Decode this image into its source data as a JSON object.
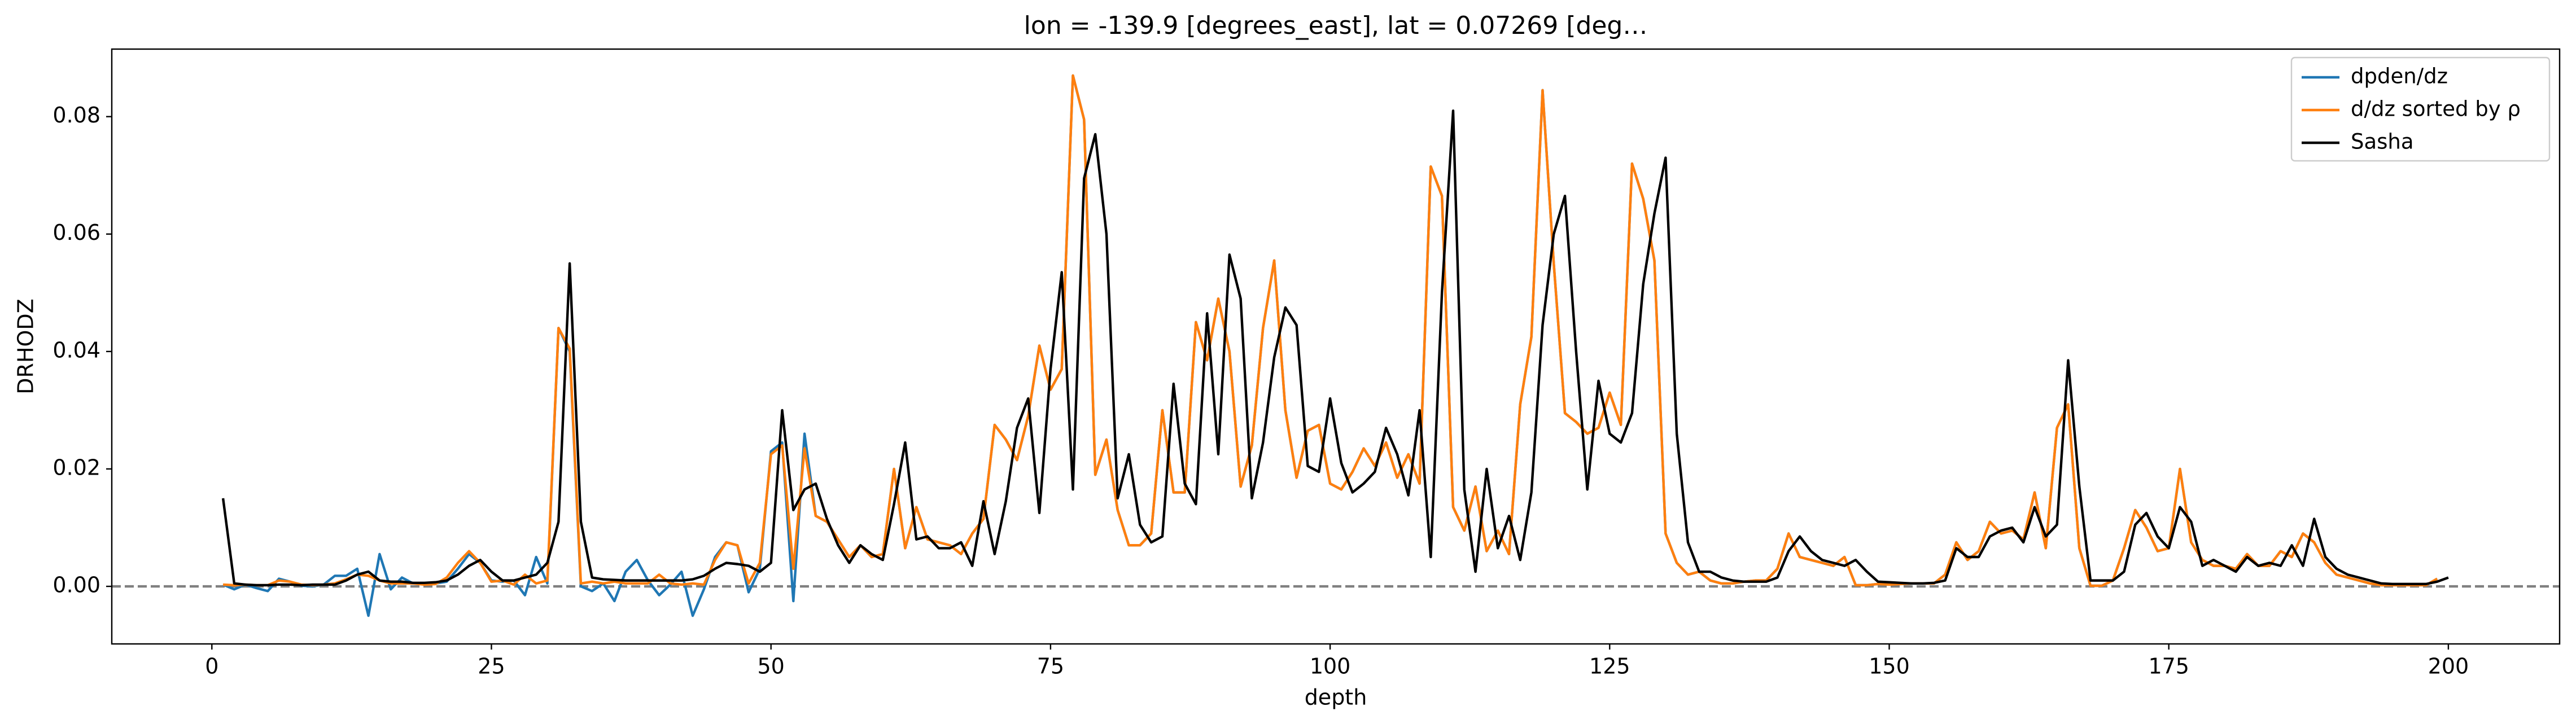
{
  "chart_data": {
    "type": "line",
    "title": "lon = -139.9 [degrees_east], lat = 0.07269 [deg…",
    "x_label": "depth",
    "y_label": "DRHODZ",
    "xlim": [
      -8.95,
      209.95
    ],
    "ylim": [
      -0.0098,
      0.0915
    ],
    "xticks": [
      0,
      25,
      50,
      75,
      100,
      125,
      150,
      175,
      200
    ],
    "yticks": [
      {
        "value": 0,
        "label": "0.00"
      },
      0.02,
      0.04,
      0.06,
      0.08
    ],
    "grid": false,
    "legend_loc": "upper right",
    "hline": {
      "value": 0,
      "color": "#808080",
      "style": "dashed"
    },
    "x": [
      1,
      2,
      3,
      4,
      5,
      6,
      7,
      8,
      9,
      10,
      11,
      12,
      13,
      14,
      15,
      16,
      17,
      18,
      19,
      20,
      21,
      22,
      23,
      24,
      25,
      26,
      27,
      28,
      29,
      30,
      31,
      32,
      33,
      34,
      35,
      36,
      37,
      38,
      39,
      40,
      41,
      42,
      43,
      44,
      45,
      46,
      47,
      48,
      49,
      50,
      51,
      52,
      53,
      54,
      55,
      56,
      57,
      58,
      59,
      60,
      61,
      62,
      63,
      64,
      65,
      66,
      67,
      68,
      69,
      70,
      71,
      72,
      73,
      74,
      75,
      76,
      77,
      78,
      79,
      80,
      81,
      82,
      83,
      84,
      85,
      86,
      87,
      88,
      89,
      90,
      91,
      92,
      93,
      94,
      95,
      96,
      97,
      98,
      99,
      100,
      101,
      102,
      103,
      104,
      105,
      106,
      107,
      108,
      109,
      110,
      111,
      112,
      113,
      114,
      115,
      116,
      117,
      118,
      119,
      120,
      121,
      122,
      123,
      124,
      125,
      126,
      127,
      128,
      129,
      130,
      131,
      132,
      133,
      134,
      135,
      136,
      137,
      138,
      139,
      140,
      141,
      142,
      143,
      144,
      145,
      146,
      147,
      148,
      149,
      150,
      151,
      152,
      153,
      154,
      155,
      156,
      157,
      158,
      159,
      160,
      161,
      162,
      163,
      164,
      165,
      166,
      167,
      168,
      169,
      170,
      171,
      172,
      173,
      174,
      175,
      176,
      177,
      178,
      179,
      180,
      181,
      182,
      183,
      184,
      185,
      186,
      187,
      188,
      189,
      190,
      191,
      192,
      193,
      194,
      195,
      196,
      197,
      198,
      199,
      200
    ],
    "series": [
      {
        "name": "dpden/dz",
        "color": "#1f77b4",
        "values": [
          0.0003,
          -0.0005,
          0.0003,
          -0.0003,
          -0.0008,
          0.0013,
          0.0008,
          0.0001,
          0.0,
          0.0003,
          0.0018,
          0.0018,
          0.003,
          -0.005,
          0.0055,
          -0.0005,
          0.0015,
          0.0005,
          0.0005,
          0.0005,
          0.0008,
          0.003,
          0.0055,
          0.004,
          0.001,
          0.0008,
          0.001,
          -0.0015,
          0.005,
          0.0005,
          0.044,
          0.04,
          0.0,
          -0.0008,
          0.0005,
          -0.0025,
          0.0025,
          0.0045,
          0.001,
          -0.0015,
          0.0003,
          0.0025,
          -0.005,
          -0.0005,
          0.005,
          0.0075,
          0.007,
          -0.001,
          0.003,
          0.023,
          0.0245,
          -0.0025,
          0.026,
          0.012,
          0.011,
          0.008,
          0.005,
          0.007,
          0.005,
          0.0055,
          0.02,
          0.0065,
          0.0135,
          0.008,
          0.0075,
          0.007,
          0.0055,
          0.009,
          0.0115,
          0.0275,
          0.025,
          0.0215,
          0.029,
          0.041,
          0.0335,
          0.037,
          0.087,
          0.0795,
          0.019,
          0.025,
          0.013,
          0.007,
          0.007,
          0.009,
          0.03,
          0.016,
          0.016,
          0.045,
          0.0385,
          0.049,
          0.04,
          0.017,
          0.024,
          0.044,
          0.0555,
          0.03,
          0.0185,
          0.0265,
          0.0275,
          0.0175,
          0.0165,
          0.0195,
          0.0235,
          0.0205,
          0.0245,
          0.0185,
          0.0225,
          0.0175,
          0.0715,
          0.0665,
          0.0135,
          0.0095,
          0.017,
          0.006,
          0.0095,
          0.0055,
          0.031,
          0.0425,
          0.0845,
          0.055,
          0.0295,
          0.028,
          0.026,
          0.027,
          0.033,
          0.0275,
          0.072,
          0.066,
          0.0555,
          0.009,
          0.004,
          0.002,
          0.0025,
          0.001,
          0.0005,
          0.0005,
          0.0008,
          0.001,
          0.001,
          0.003,
          0.009,
          0.005,
          0.0045,
          0.004,
          0.0035,
          0.005,
          0.0002,
          0.0002,
          0.0004,
          0.0003,
          0.0004,
          0.0005,
          0.0005,
          0.0005,
          0.002,
          0.0075,
          0.0045,
          0.006,
          0.011,
          0.009,
          0.0095,
          0.008,
          0.016,
          0.0065,
          0.027,
          0.031,
          0.0065,
          0.0001,
          0.0001,
          0.001,
          0.0065,
          0.013,
          0.01,
          0.006,
          0.0065,
          0.02,
          0.0075,
          0.0045,
          0.0035,
          0.0035,
          0.003,
          0.0055,
          0.0035,
          0.0035,
          0.006,
          0.005,
          0.009,
          0.0075,
          0.004,
          0.002,
          0.0015,
          0.001,
          0.0005,
          0.0002,
          0.0002,
          0.0002,
          0.0002,
          0.0002,
          0.0013,
          null
        ]
      },
      {
        "name": "d/dz sorted by ρ",
        "color": "#ff7f0e",
        "values": [
          0.0003,
          0.0002,
          0.0003,
          0.0002,
          0.0002,
          0.001,
          0.0008,
          0.0003,
          0.0002,
          0.0003,
          0.0005,
          0.0012,
          0.002,
          0.0018,
          0.001,
          0.0005,
          0.0005,
          0.0005,
          0.0003,
          0.0004,
          0.0015,
          0.004,
          0.006,
          0.004,
          0.0008,
          0.001,
          0.0003,
          0.002,
          0.0005,
          0.001,
          0.044,
          0.0405,
          0.0005,
          0.0008,
          0.0005,
          0.0008,
          0.0005,
          0.0005,
          0.0005,
          0.002,
          0.0005,
          0.0003,
          0.0005,
          0.0003,
          0.0045,
          0.0075,
          0.007,
          0.0005,
          0.004,
          0.0225,
          0.024,
          0.003,
          0.0235,
          0.012,
          0.011,
          0.008,
          0.005,
          0.007,
          0.005,
          0.0055,
          0.02,
          0.0065,
          0.0135,
          0.008,
          0.0075,
          0.007,
          0.0055,
          0.009,
          0.0115,
          0.0275,
          0.025,
          0.0215,
          0.029,
          0.041,
          0.0335,
          0.037,
          0.087,
          0.0795,
          0.019,
          0.025,
          0.013,
          0.007,
          0.007,
          0.009,
          0.03,
          0.016,
          0.016,
          0.045,
          0.0385,
          0.049,
          0.04,
          0.017,
          0.024,
          0.044,
          0.0555,
          0.03,
          0.0185,
          0.0265,
          0.0275,
          0.0175,
          0.0165,
          0.0195,
          0.0235,
          0.0205,
          0.0245,
          0.0185,
          0.0225,
          0.0175,
          0.0715,
          0.0665,
          0.0135,
          0.0095,
          0.017,
          0.006,
          0.0095,
          0.0055,
          0.031,
          0.0425,
          0.0845,
          0.055,
          0.0295,
          0.028,
          0.026,
          0.027,
          0.033,
          0.0275,
          0.072,
          0.066,
          0.0555,
          0.009,
          0.004,
          0.002,
          0.0025,
          0.001,
          0.0005,
          0.0005,
          0.0008,
          0.001,
          0.001,
          0.003,
          0.009,
          0.005,
          0.0045,
          0.004,
          0.0035,
          0.005,
          0.0002,
          0.0002,
          0.0004,
          0.0003,
          0.0004,
          0.0005,
          0.0005,
          0.0005,
          0.002,
          0.0075,
          0.0045,
          0.006,
          0.011,
          0.009,
          0.0095,
          0.008,
          0.016,
          0.0065,
          0.027,
          0.031,
          0.0065,
          0.0001,
          0.0001,
          0.001,
          0.0065,
          0.013,
          0.01,
          0.006,
          0.0065,
          0.02,
          0.0075,
          0.0045,
          0.0035,
          0.0035,
          0.003,
          0.0055,
          0.0035,
          0.0035,
          0.006,
          0.005,
          0.009,
          0.0075,
          0.004,
          0.002,
          0.0015,
          0.001,
          0.0005,
          0.0002,
          0.0002,
          0.0002,
          0.0002,
          0.0002,
          0.0013,
          null
        ]
      },
      {
        "name": "Sasha",
        "color": "#000000",
        "values": [
          0.015,
          0.0005,
          0.0003,
          0.0002,
          0.0002,
          0.0003,
          0.0003,
          0.0002,
          0.0003,
          0.0003,
          0.0003,
          0.001,
          0.002,
          0.0025,
          0.001,
          0.0008,
          0.0008,
          0.0006,
          0.0006,
          0.0007,
          0.001,
          0.002,
          0.0035,
          0.0045,
          0.0025,
          0.001,
          0.001,
          0.0015,
          0.002,
          0.004,
          0.011,
          0.055,
          0.011,
          0.0015,
          0.0012,
          0.0011,
          0.001,
          0.001,
          0.001,
          0.001,
          0.001,
          0.001,
          0.0012,
          0.0018,
          0.003,
          0.004,
          0.0038,
          0.0035,
          0.0025,
          0.004,
          0.03,
          0.013,
          0.0165,
          0.0175,
          0.0115,
          0.007,
          0.004,
          0.007,
          0.0055,
          0.0045,
          0.014,
          0.0245,
          0.008,
          0.0085,
          0.0065,
          0.0065,
          0.0075,
          0.0035,
          0.0145,
          0.0055,
          0.0145,
          0.027,
          0.032,
          0.0125,
          0.037,
          0.0535,
          0.0165,
          0.0695,
          0.077,
          0.06,
          0.015,
          0.0225,
          0.0105,
          0.0075,
          0.0085,
          0.0345,
          0.0175,
          0.014,
          0.0465,
          0.0225,
          0.0565,
          0.049,
          0.015,
          0.0245,
          0.039,
          0.0475,
          0.0445,
          0.0205,
          0.0195,
          0.032,
          0.021,
          0.016,
          0.0175,
          0.0195,
          0.027,
          0.0225,
          0.0155,
          0.03,
          0.005,
          0.05,
          0.081,
          0.0165,
          0.0025,
          0.02,
          0.0065,
          0.012,
          0.0045,
          0.016,
          0.0445,
          0.06,
          0.0665,
          0.04,
          0.0165,
          0.035,
          0.026,
          0.0245,
          0.0295,
          0.0515,
          0.0635,
          0.073,
          0.026,
          0.0075,
          0.0025,
          0.0025,
          0.0015,
          0.001,
          0.0008,
          0.0008,
          0.0008,
          0.0015,
          0.006,
          0.0085,
          0.006,
          0.0045,
          0.004,
          0.0035,
          0.0045,
          0.0025,
          0.0008,
          0.0007,
          0.0006,
          0.0005,
          0.0005,
          0.0006,
          0.001,
          0.0065,
          0.005,
          0.005,
          0.0085,
          0.0095,
          0.01,
          0.0075,
          0.0135,
          0.0085,
          0.0105,
          0.0385,
          0.017,
          0.001,
          0.001,
          0.001,
          0.0025,
          0.0105,
          0.0125,
          0.0085,
          0.0065,
          0.0135,
          0.011,
          0.0035,
          0.0045,
          0.0035,
          0.0025,
          0.005,
          0.0035,
          0.004,
          0.0035,
          0.007,
          0.0035,
          0.0115,
          0.005,
          0.003,
          0.002,
          0.0015,
          0.001,
          0.0005,
          0.0004,
          0.0004,
          0.0004,
          0.0004,
          0.0008,
          0.0015
        ]
      }
    ]
  }
}
